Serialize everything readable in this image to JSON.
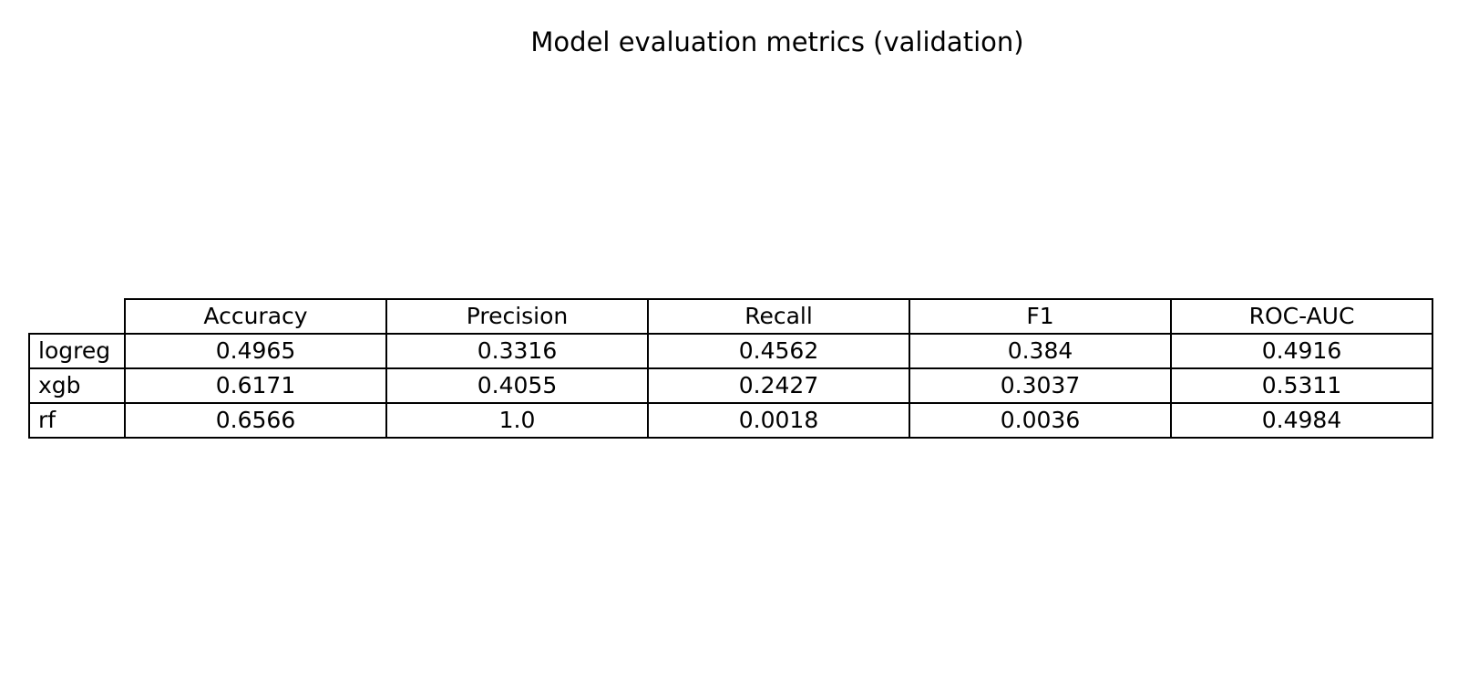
{
  "chart_data": {
    "type": "table",
    "title": "Model evaluation metrics (validation)",
    "columns": [
      "Accuracy",
      "Precision",
      "Recall",
      "F1",
      "ROC-AUC"
    ],
    "rows": [
      {
        "label": "logreg",
        "values": [
          "0.4965",
          "0.3316",
          "0.4562",
          "0.384",
          "0.4916"
        ]
      },
      {
        "label": "xgb",
        "values": [
          "0.6171",
          "0.4055",
          "0.2427",
          "0.3037",
          "0.5311"
        ]
      },
      {
        "label": "rf",
        "values": [
          "0.6566",
          "1.0",
          "0.0018",
          "0.0036",
          "0.4984"
        ]
      }
    ]
  }
}
